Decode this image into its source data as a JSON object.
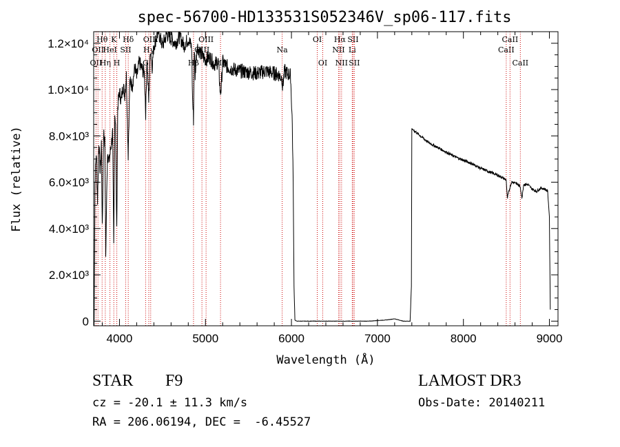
{
  "chart_data": {
    "type": "line",
    "title": "spec-56700-HD133531S052346V_sp06-117.fits",
    "xlabel": "Wavelength (Å)",
    "ylabel": "Flux (relative)",
    "xlim": [
      3700,
      9100
    ],
    "ylim": [
      -200,
      12500
    ],
    "x_ticks": [
      4000,
      5000,
      6000,
      7000,
      8000,
      9000
    ],
    "x_tick_labels": [
      "4000",
      "5000",
      "6000",
      "7000",
      "8000",
      "9000"
    ],
    "y_ticks": [
      0,
      2000,
      4000,
      6000,
      8000,
      10000,
      12000
    ],
    "y_tick_labels": [
      "0",
      "2.0×10³",
      "4.0×10³",
      "6.0×10³",
      "8.0×10³",
      "1.0×10⁴",
      "1.2×10⁴"
    ],
    "series": [
      {
        "name": "spectrum",
        "x": [
          3700,
          3705,
          3715,
          3730,
          3745,
          3760,
          3775,
          3790,
          3800,
          3815,
          3830,
          3840,
          3860,
          3880,
          3900,
          3920,
          3933,
          3945,
          3955,
          3968,
          3980,
          4000,
          4020,
          4040,
          4060,
          4080,
          4101,
          4120,
          4150,
          4180,
          4200,
          4230,
          4260,
          4290,
          4305,
          4320,
          4340,
          4360,
          4380,
          4400,
          4450,
          4500,
          4550,
          4600,
          4650,
          4700,
          4750,
          4800,
          4840,
          4850,
          4861,
          4870,
          4880,
          4900,
          4950,
          5000,
          5050,
          5100,
          5150,
          5167,
          5172,
          5183,
          5200,
          5250,
          5300,
          5350,
          5400,
          5500,
          5600,
          5700,
          5800,
          5850,
          5890,
          5896,
          5920,
          5950,
          5990,
          6010,
          6020,
          6030,
          6040,
          6060,
          6100,
          6300,
          6500,
          6700,
          6900,
          7100,
          7200,
          7300,
          7380,
          7395,
          7400,
          7420,
          7500,
          7600,
          7700,
          7800,
          7900,
          8000,
          8100,
          8200,
          8300,
          8400,
          8450,
          8498,
          8510,
          8542,
          8560,
          8600,
          8662,
          8680,
          8700,
          8750,
          8800,
          8850,
          8900,
          8950,
          8980,
          9000,
          9010
        ],
        "y": [
          2000,
          0,
          6000,
          7300,
          5200,
          7800,
          6400,
          7700,
          3900,
          8200,
          7700,
          2800,
          7300,
          6900,
          7500,
          8100,
          3200,
          9000,
          8600,
          3800,
          9300,
          9900,
          9500,
          10200,
          9800,
          10600,
          7200,
          10300,
          10200,
          11000,
          10500,
          11200,
          10900,
          10700,
          9000,
          11400,
          9500,
          11800,
          11000,
          11900,
          12500,
          11900,
          12400,
          12200,
          12000,
          12300,
          11900,
          12200,
          11800,
          9600,
          8700,
          11800,
          10600,
          11900,
          11500,
          11300,
          11400,
          11100,
          11200,
          10200,
          9800,
          10100,
          11200,
          11000,
          10900,
          10850,
          10800,
          10750,
          10700,
          10800,
          10700,
          10650,
          10500,
          10100,
          10800,
          10700,
          10600,
          8500,
          6000,
          1500,
          50,
          0,
          0,
          0,
          0,
          0,
          0,
          50,
          100,
          0,
          0,
          1500,
          8300,
          8250,
          8000,
          7700,
          7500,
          7300,
          7100,
          6950,
          6800,
          6600,
          6450,
          6300,
          6200,
          6100,
          5300,
          5800,
          6000,
          6000,
          5800,
          5300,
          5900,
          5900,
          5700,
          5600,
          5750,
          5700,
          5600,
          4500,
          500
        ]
      }
    ],
    "lines": [
      {
        "w": 3727,
        "label": "OII",
        "row": 2
      },
      {
        "w": 3750,
        "label": "OII",
        "row": 1
      },
      {
        "w": 3798,
        "label": "Hθ",
        "row": 0
      },
      {
        "w": 3835,
        "label": "Hη",
        "row": 2
      },
      {
        "w": 3889,
        "label": "HeI",
        "row": 1
      },
      {
        "w": 3934,
        "label": "K",
        "row": 0
      },
      {
        "w": 3969,
        "label": "H",
        "row": 2
      },
      {
        "w": 4072,
        "label": "SII",
        "row": 1
      },
      {
        "w": 4102,
        "label": "Hδ",
        "row": 0
      },
      {
        "w": 4304,
        "label": "G",
        "row": 2
      },
      {
        "w": 4341,
        "label": "Hγ",
        "row": 1
      },
      {
        "w": 4363,
        "label": "OIII",
        "row": 0
      },
      {
        "w": 4861,
        "label": "Hβ",
        "row": 2
      },
      {
        "w": 4959,
        "label": "OIII",
        "row": 1
      },
      {
        "w": 5007,
        "label": "OIII",
        "row": 0
      },
      {
        "w": 5175,
        "label": "Mg",
        "row": 2
      },
      {
        "w": 5892,
        "label": "Na",
        "row": 1
      },
      {
        "w": 6300,
        "label": "OI",
        "row": 0
      },
      {
        "w": 6364,
        "label": "OI",
        "row": 2
      },
      {
        "w": 6548,
        "label": "NII",
        "row": 1
      },
      {
        "w": 6563,
        "label": "Hα",
        "row": 0
      },
      {
        "w": 6583,
        "label": "NII",
        "row": 2
      },
      {
        "w": 6707,
        "label": "Li",
        "row": 1
      },
      {
        "w": 6716,
        "label": "SII",
        "row": 0
      },
      {
        "w": 6731,
        "label": "SII",
        "row": 2
      },
      {
        "w": 8498,
        "label": "CaII",
        "row": 1
      },
      {
        "w": 8542,
        "label": "CaII",
        "row": 0
      },
      {
        "w": 8662,
        "label": "CaII",
        "row": 2
      }
    ]
  },
  "info": {
    "object_class": "STAR",
    "subclass": "F9",
    "survey": "LAMOST DR3",
    "cz": "cz = -20.1 ± 11.3 km/s",
    "obs_date": "Obs-Date: 20140211",
    "coords": "RA = 206.06194, DEC =  -6.45527"
  }
}
